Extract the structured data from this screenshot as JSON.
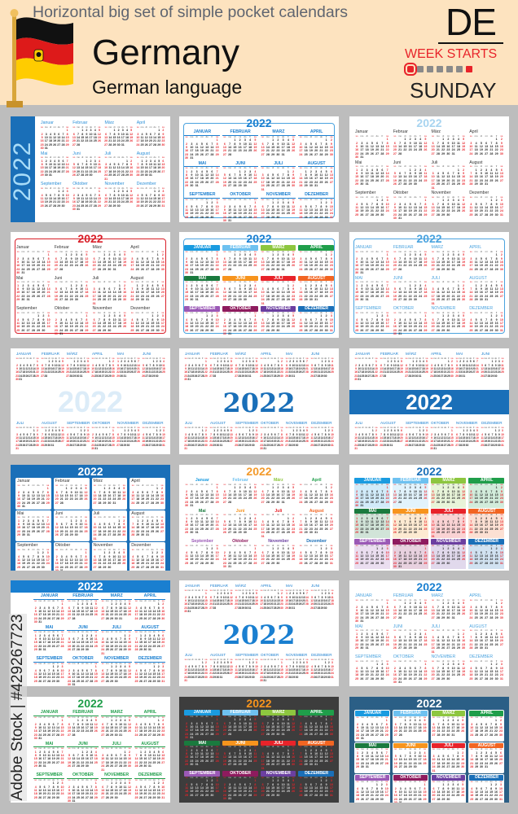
{
  "header": {
    "subtitle": "Horizontal big set of simple pocket calendars",
    "country": "Germany",
    "language": "German language",
    "code": "DE",
    "week_starts_label": "WEEK STARTS",
    "week_start_day": "SUNDAY",
    "flag_colors": [
      "#111111",
      "#dd1a1a",
      "#ffcc00"
    ]
  },
  "watermark": "Adobe Stock | #429267723",
  "calendar": {
    "year": "2022",
    "weekdays": [
      "so",
      "mo",
      "di",
      "mi",
      "do",
      "fr",
      "sa"
    ],
    "months": [
      "Januar",
      "Februar",
      "März",
      "April",
      "Mai",
      "Juni",
      "Juli",
      "August",
      "September",
      "Oktober",
      "November",
      "Dezember"
    ],
    "weekend_color": "#e8232a"
  },
  "palette": [
    "#1a9be0",
    "#6ec1f0",
    "#8dc63f",
    "#1f9e4a",
    "#1a7a3e",
    "#f7941d",
    "#e8232a",
    "#f26522",
    "#9b59b6",
    "#8e1b5e",
    "#6b3fa0",
    "#1a6fb8"
  ],
  "cards": [
    {
      "style": "side",
      "bg": "#ffffff",
      "accent": "#1a6fb8",
      "year_color": "#a8dcf8",
      "month_color": "#2a8fd8",
      "upper": false
    },
    {
      "style": "bars",
      "bg": "#ffffff",
      "accent": "#1a7fd0",
      "year_color": "#1a7fd0",
      "month_color": "#1a7fd0",
      "upper": true,
      "border": "#4aa3df"
    },
    {
      "style": "plain",
      "bg": "#ffffff",
      "accent": "#a8d4f0",
      "year_color": "#a8d4f0",
      "month_color": "#333333",
      "upper": false
    },
    {
      "style": "plain",
      "bg": "#ffffff",
      "accent": "#d9202a",
      "year_color": "#d9202a",
      "month_color": "#333333",
      "upper": false,
      "border": "#d9202a"
    },
    {
      "style": "multi-bars",
      "bg": "#ffffff",
      "accent": "#1a7fd0",
      "year_color": "#1a7fd0",
      "month_color": "#ffffff",
      "upper": true,
      "border": "#4aa3df"
    },
    {
      "style": "plain",
      "bg": "#ffffff",
      "accent": "#4aa3df",
      "year_color": "#4aa3df",
      "month_color": "#4aa3df",
      "upper": true,
      "border": "#4aa3df"
    },
    {
      "style": "watermark-year",
      "bg": "#ffffff",
      "accent": "#cfe6f7",
      "year_color": "#dcecf8",
      "month_color": "#1a7fd0",
      "upper": true
    },
    {
      "style": "center-year",
      "bg": "#ffffff",
      "accent": "#1a6fb8",
      "year_color": "#1a6fb8",
      "month_color": "#1a7fd0",
      "upper": true
    },
    {
      "style": "band-year",
      "bg": "#ffffff",
      "accent": "#1a6fb8",
      "year_color": "#ffffff",
      "month_color": "#1a7fd0",
      "upper": true
    },
    {
      "style": "boxes",
      "bg": "#1a6fb8",
      "accent": "#ffffff",
      "year_color": "#ffffff",
      "month_color": "#333333",
      "upper": false
    },
    {
      "style": "multi-text",
      "bg": "#ffffff",
      "accent": "#f39a2b",
      "year_color": "#f39a2b",
      "month_color": "#333333",
      "upper": false
    },
    {
      "style": "pastel",
      "bg": "#ffffff",
      "accent": "#1a7fd0",
      "year_color": "#1a6fb8",
      "month_color": "#ffffff",
      "upper": true
    },
    {
      "style": "bars",
      "bg": "#ffffff",
      "accent": "#1a7fd0",
      "year_color": "#ffffff",
      "month_color": "#1a7fd0",
      "upper": true,
      "year_band": "#1a7fd0"
    },
    {
      "style": "center-year",
      "bg": "#ffffff",
      "accent": "#8dc63f",
      "year_color": "#1a7fd0",
      "month_color": "#1a7fd0",
      "upper": true,
      "circles": true
    },
    {
      "style": "plain",
      "bg": "#ffffff",
      "accent": "#4aa3df",
      "year_color": "#1a7fd0",
      "month_color": "#4aa3df",
      "upper": true
    },
    {
      "style": "bars",
      "bg": "#ffffff",
      "accent": "#1f9e4a",
      "year_color": "#1f9e4a",
      "month_color": "#1f9e4a",
      "upper": true
    },
    {
      "style": "multi-bars",
      "bg": "#3d3d3d",
      "accent": "#f7941d",
      "year_color": "#f7941d",
      "month_color": "#ffffff",
      "upper": true,
      "dark": true
    },
    {
      "style": "multi-boxes",
      "bg": "#2b5f86",
      "accent": "#ffffff",
      "year_color": "#ffffff",
      "month_color": "#ffffff",
      "upper": true
    }
  ]
}
